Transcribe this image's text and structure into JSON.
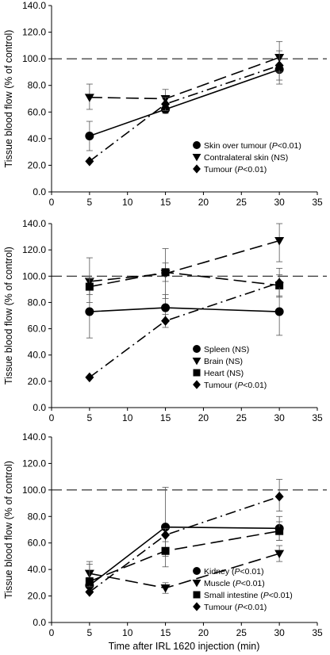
{
  "figure": {
    "xlabel": "Time after IRL 1620 injection (min)"
  },
  "chart_data": [
    {
      "type": "line",
      "title": "",
      "xlabel": "",
      "ylabel": "Tissue blood flow (% of control)",
      "xlim": [
        0,
        35
      ],
      "ylim": [
        0,
        140
      ],
      "xticks": [
        "0",
        "5",
        "10",
        "15",
        "20",
        "25",
        "30",
        "35"
      ],
      "yticks": [
        "0.0",
        "20.0",
        "40.0",
        "60.0",
        "80.0",
        "100.0",
        "120.0",
        "140.0"
      ],
      "reference_line": 100,
      "legend_position": "bottom-right",
      "x": [
        5,
        15,
        30
      ],
      "series": [
        {
          "legend": [
            "Skin over tumour (",
            "P",
            "<0.01)"
          ],
          "marker": "circle",
          "line": "solid",
          "values": [
            42,
            62,
            92
          ],
          "errors": [
            [
              31,
              53
            ],
            [
              59,
              65
            ],
            [
              81,
              102
            ]
          ]
        },
        {
          "legend": [
            "Contralateral skin (NS)"
          ],
          "marker": "triangle-down",
          "line": "long-dash",
          "values": [
            71,
            70,
            101
          ],
          "errors": [
            [
              62,
              81
            ],
            [
              65,
              77
            ],
            [
              90,
              113
            ]
          ]
        },
        {
          "legend": [
            "Tumour (",
            "P",
            "<0.01)"
          ],
          "marker": "diamond",
          "line": "dash-dot",
          "values": [
            23,
            66,
            95
          ],
          "errors": [
            [
              23,
              23
            ],
            [
              61,
              71
            ],
            [
              84,
              106
            ]
          ]
        }
      ]
    },
    {
      "type": "line",
      "title": "",
      "xlabel": "",
      "ylabel": "Tissue blood flow (% of control)",
      "xlim": [
        0,
        35
      ],
      "ylim": [
        0,
        140
      ],
      "xticks": [
        "0",
        "5",
        "10",
        "15",
        "20",
        "25",
        "30",
        "35"
      ],
      "yticks": [
        "0.0",
        "20.0",
        "40.0",
        "60.0",
        "80.0",
        "100.0",
        "120.0",
        "140.0"
      ],
      "reference_line": 100,
      "legend_position": "bottom-right",
      "x": [
        5,
        15,
        30
      ],
      "series": [
        {
          "legend": [
            "Spleen (NS)"
          ],
          "marker": "circle",
          "line": "solid",
          "values": [
            73,
            76,
            73
          ],
          "errors": [
            [
              53,
              93
            ],
            [
              66,
              86
            ],
            [
              55,
              91
            ]
          ]
        },
        {
          "legend": [
            "Brain (NS)"
          ],
          "marker": "triangle-down",
          "line": "long-dash",
          "values": [
            96,
            102,
            127
          ],
          "errors": [
            [
              80,
              114
            ],
            [
              83,
              121
            ],
            [
              111,
              140
            ]
          ]
        },
        {
          "legend": [
            "Heart (NS)"
          ],
          "marker": "square",
          "line": "long-dash",
          "values": [
            92,
            103,
            93
          ],
          "errors": [
            [
              86,
              98
            ],
            [
              96,
              110
            ],
            [
              85,
              101
            ]
          ]
        },
        {
          "legend": [
            "Tumour (",
            "P",
            "<0.01)"
          ],
          "marker": "diamond",
          "line": "dash-dot",
          "values": [
            23,
            66,
            95
          ],
          "errors": [
            [
              23,
              23
            ],
            [
              61,
              71
            ],
            [
              84,
              106
            ]
          ]
        }
      ]
    },
    {
      "type": "line",
      "title": "",
      "xlabel": "Time after IRL 1620 injection (min)",
      "ylabel": "Tissue blood flow (% of control)",
      "xlim": [
        0,
        35
      ],
      "ylim": [
        0,
        140
      ],
      "xticks": [
        "0",
        "5",
        "10",
        "15",
        "20",
        "25",
        "30",
        "35"
      ],
      "yticks": [
        "0.0",
        "20.0",
        "40.0",
        "60.0",
        "80.0",
        "100.0",
        "120.0",
        "140.0"
      ],
      "reference_line": 100,
      "legend_position": "bottom-right",
      "x": [
        5,
        15,
        30
      ],
      "series": [
        {
          "legend": [
            "Kidney (",
            "P",
            "<0.01)"
          ],
          "marker": "circle",
          "line": "solid",
          "values": [
            28,
            72,
            71
          ],
          "errors": [
            [
              22,
              34
            ],
            [
              50,
              102
            ],
            [
              62,
              80
            ]
          ]
        },
        {
          "legend": [
            "Muscle (",
            "P",
            "<0.01)"
          ],
          "marker": "triangle-down",
          "line": "long-dash",
          "values": [
            37,
            26,
            52
          ],
          "errors": [
            [
              30,
              44
            ],
            [
              22,
              30
            ],
            [
              46,
              58
            ]
          ]
        },
        {
          "legend": [
            "Small intestine (",
            "P",
            "<0.01)"
          ],
          "marker": "square",
          "line": "long-dash",
          "values": [
            31,
            54,
            69
          ],
          "errors": [
            [
              27,
              46
            ],
            [
              42,
              66
            ],
            [
              62,
              76
            ]
          ]
        },
        {
          "legend": [
            "Tumour (",
            "P",
            "<0.01)"
          ],
          "marker": "diamond",
          "line": "dash-dot",
          "values": [
            23,
            66,
            95
          ],
          "errors": [
            [
              23,
              23
            ],
            [
              61,
              71
            ],
            [
              84,
              108
            ]
          ]
        }
      ]
    }
  ]
}
